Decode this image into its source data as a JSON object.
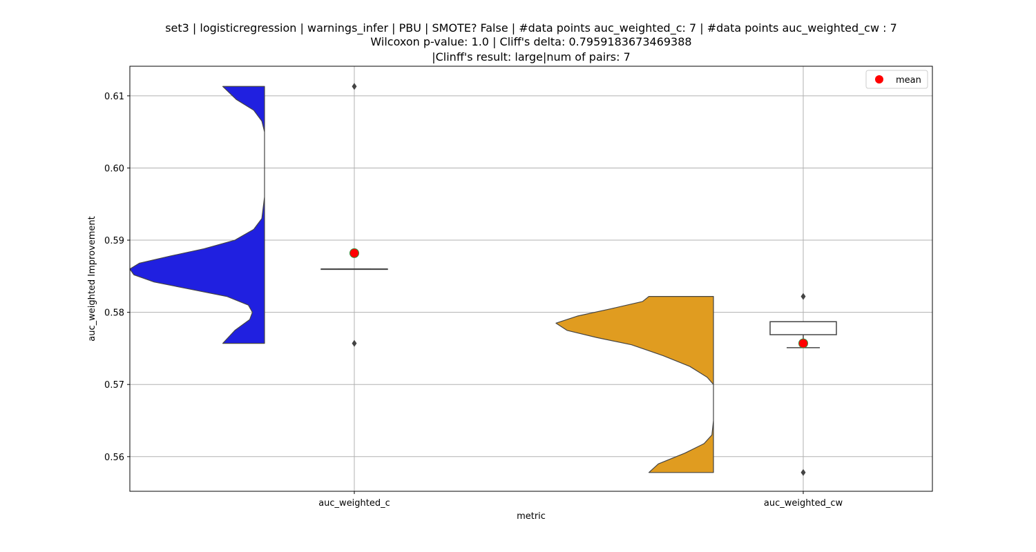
{
  "chart_data": {
    "type": "violin",
    "title_lines": [
      "set3 | logisticregression | warnings_infer | PBU | SMOTE? False | #data points auc_weighted_c: 7 | #data points auc_weighted_cw : 7",
      "Wilcoxon p-value: 1.0 | Cliff's delta: 0.7959183673469388",
      "|Clinff's result: large|num of pairs: 7"
    ],
    "xlabel": "metric",
    "ylabel": "auc_weighted Improvement",
    "ylim": [
      0.5552,
      0.6141
    ],
    "yticks": [
      {
        "value": 0.56,
        "label": "0.56"
      },
      {
        "value": 0.57,
        "label": "0.57"
      },
      {
        "value": 0.58,
        "label": "0.58"
      },
      {
        "value": 0.59,
        "label": "0.59"
      },
      {
        "value": 0.6,
        "label": "0.60"
      },
      {
        "value": 0.61,
        "label": "0.61"
      }
    ],
    "categories": [
      "auc_weighted_c",
      "auc_weighted_cw"
    ],
    "grid": true,
    "legend": {
      "position": "top-right",
      "entries": [
        {
          "label": "mean",
          "color": "#ff0000"
        }
      ]
    },
    "series": [
      {
        "category": "auc_weighted_c",
        "color": "#2020e0",
        "violin_min": 0.5757,
        "violin_max": 0.6113,
        "density_profile": [
          [
            0.5757,
            0.31
          ],
          [
            0.5775,
            0.22
          ],
          [
            0.579,
            0.11
          ],
          [
            0.58,
            0.09
          ],
          [
            0.581,
            0.12
          ],
          [
            0.5822,
            0.28
          ],
          [
            0.5832,
            0.55
          ],
          [
            0.5842,
            0.82
          ],
          [
            0.5852,
            0.97
          ],
          [
            0.586,
            1.0
          ],
          [
            0.5868,
            0.93
          ],
          [
            0.5878,
            0.7
          ],
          [
            0.5888,
            0.45
          ],
          [
            0.59,
            0.22
          ],
          [
            0.5915,
            0.08
          ],
          [
            0.593,
            0.02
          ],
          [
            0.596,
            0.0
          ],
          [
            0.605,
            0.0
          ],
          [
            0.6065,
            0.02
          ],
          [
            0.608,
            0.08
          ],
          [
            0.6095,
            0.21
          ],
          [
            0.6113,
            0.31
          ]
        ],
        "box": {
          "q1": 0.586,
          "median": 0.586,
          "q3": 0.586,
          "whisker_low": 0.586,
          "whisker_high": 0.586
        },
        "fliers": [
          0.6113,
          0.5757
        ],
        "mean": 0.5882
      },
      {
        "category": "auc_weighted_cw",
        "color": "#e09c20",
        "violin_min": 0.5578,
        "violin_max": 0.5822,
        "density_profile": [
          [
            0.5578,
            0.41
          ],
          [
            0.559,
            0.35
          ],
          [
            0.5605,
            0.18
          ],
          [
            0.5618,
            0.06
          ],
          [
            0.563,
            0.01
          ],
          [
            0.565,
            0.0
          ],
          [
            0.57,
            0.0
          ],
          [
            0.571,
            0.04
          ],
          [
            0.5725,
            0.15
          ],
          [
            0.574,
            0.32
          ],
          [
            0.5755,
            0.52
          ],
          [
            0.5765,
            0.74
          ],
          [
            0.5775,
            0.93
          ],
          [
            0.5785,
            1.0
          ],
          [
            0.5795,
            0.86
          ],
          [
            0.5805,
            0.65
          ],
          [
            0.5815,
            0.45
          ],
          [
            0.5822,
            0.41
          ]
        ],
        "box": {
          "q1": 0.5769,
          "median": 0.5787,
          "q3": 0.5787,
          "whisker_low": 0.5751,
          "whisker_high": 0.5787
        },
        "fliers": [
          0.5822,
          0.5578
        ],
        "mean": 0.5757
      }
    ]
  }
}
